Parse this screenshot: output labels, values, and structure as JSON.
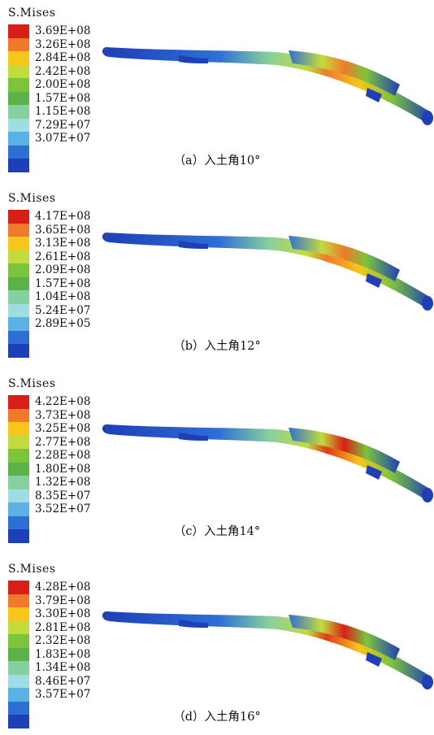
{
  "legend_colors": [
    "#d81e16",
    "#f07a2a",
    "#f6c61b",
    "#c2dc3d",
    "#7cc43c",
    "#5bb24a",
    "#86cf9e",
    "#9fdde3",
    "#5ab1e3",
    "#2e6fd6",
    "#1e3fb8"
  ],
  "panels": [
    {
      "legend_title": "S.Mises",
      "values": [
        "3.69E+08",
        "3.26E+08",
        "2.84E+08",
        "2.42E+08",
        "2.00E+08",
        "1.57E+08",
        "1.15E+08",
        "7.29E+07",
        "3.07E+07"
      ],
      "caption": "（a）入土角10°"
    },
    {
      "legend_title": "S.Mises",
      "values": [
        "4.17E+08",
        "3.65E+08",
        "3.13E+08",
        "2.61E+08",
        "2.09E+08",
        "1.57E+08",
        "1.04E+08",
        "5.24E+07",
        "2.89E+05"
      ],
      "caption": "（b）入土角12°"
    },
    {
      "legend_title": "S.Mises",
      "values": [
        "4.22E+08",
        "3.73E+08",
        "3.25E+08",
        "2.77E+08",
        "2.28E+08",
        "1.80E+08",
        "1.32E+08",
        "8.35E+07",
        "3.52E+07"
      ],
      "caption": "（c）入土角14°"
    },
    {
      "legend_title": "S.Mises",
      "values": [
        "4.28E+08",
        "3.79E+08",
        "3.30E+08",
        "2.81E+08",
        "2.32E+08",
        "1.83E+08",
        "1.34E+08",
        "8.46E+07",
        "3.57E+07"
      ],
      "caption": "（d）入土角16°"
    }
  ]
}
